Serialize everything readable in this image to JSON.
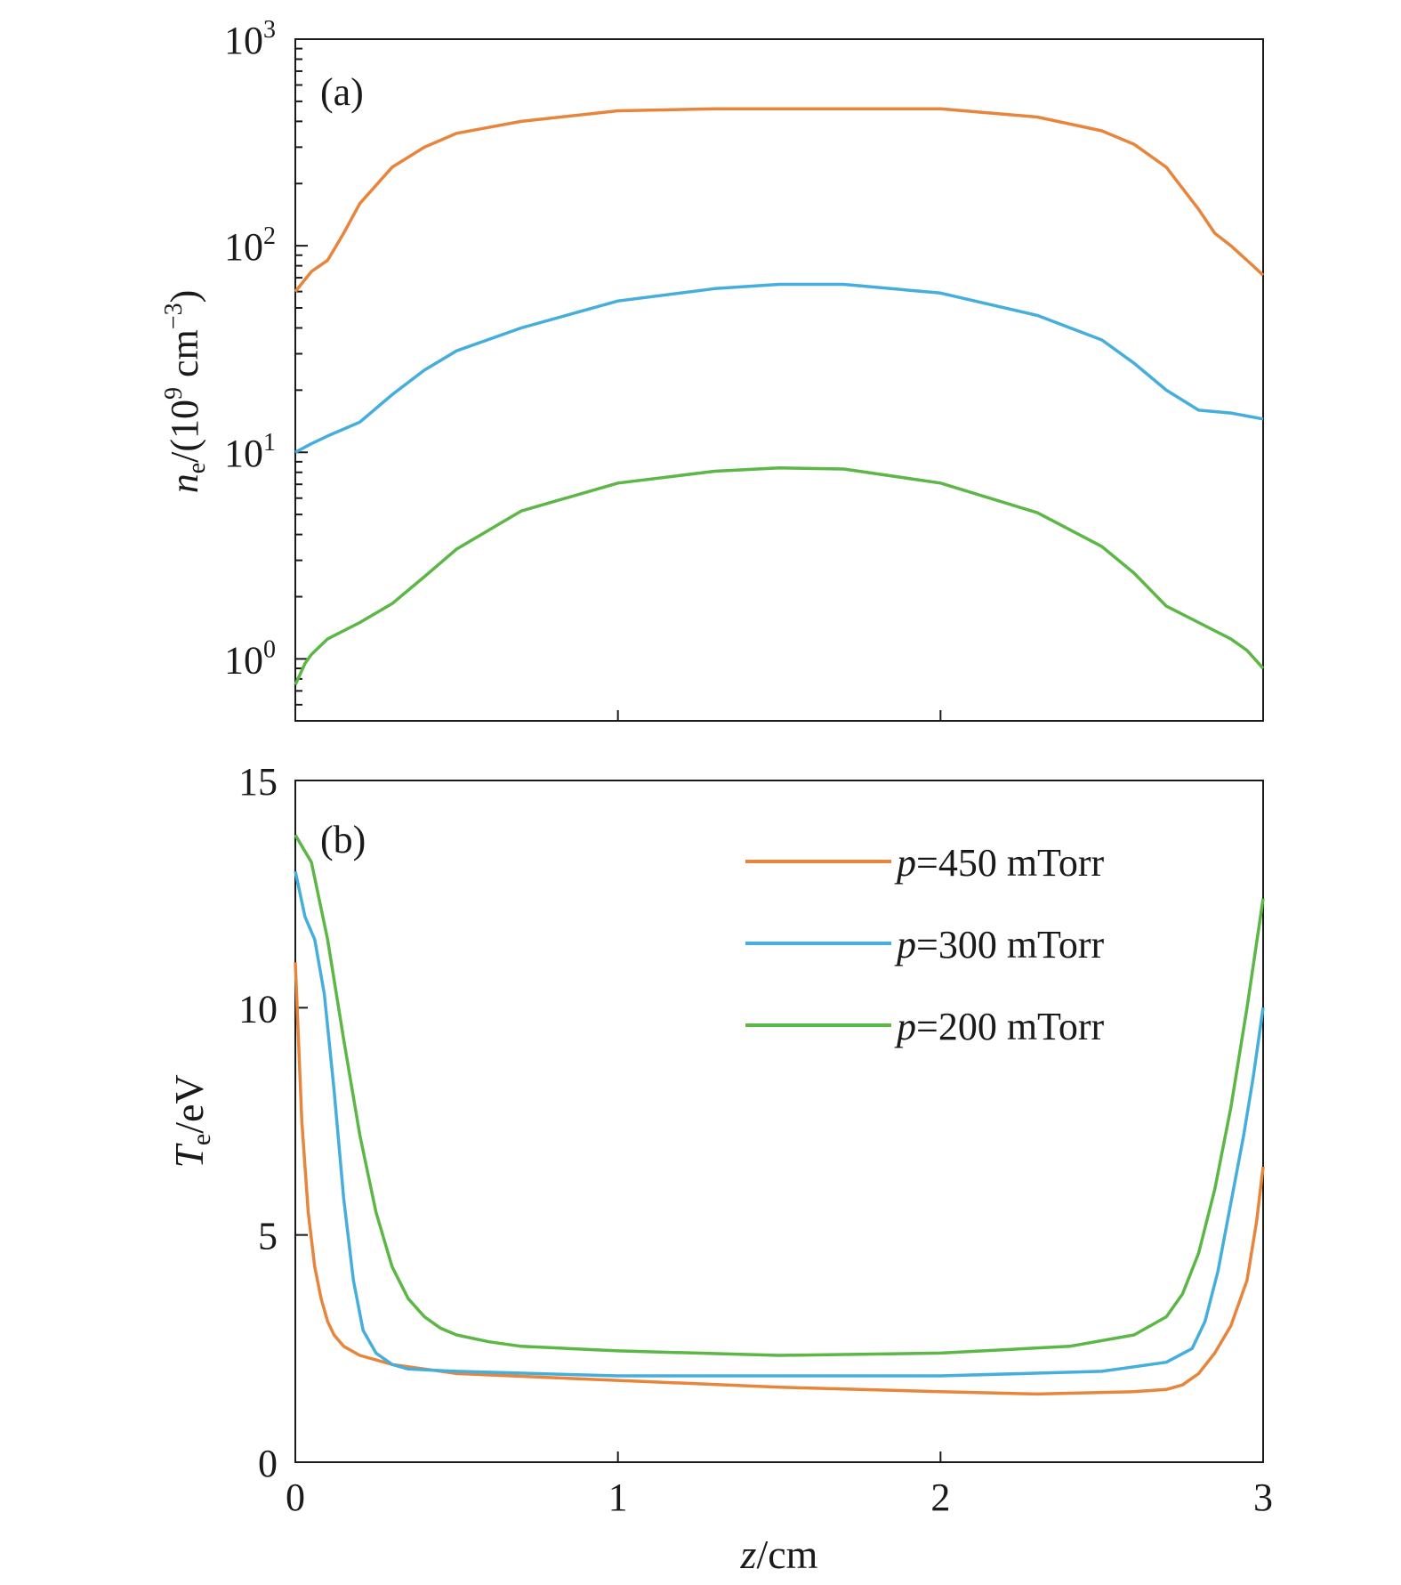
{
  "chart_data": [
    {
      "panel": "(a)",
      "type": "line",
      "yscale": "log",
      "xlim": [
        0,
        3
      ],
      "ylim_log10": [
        -0.3,
        3
      ],
      "ylabel_main": "n",
      "ylabel_sub": "e",
      "ylabel_rest": "/(10",
      "ylabel_exp": "9",
      "ylabel_unit": " cm",
      "ylabel_unit_exp": "−3",
      "ylabel_close": ")",
      "yticks": [
        {
          "base": "10",
          "exp": "0",
          "value": 1
        },
        {
          "base": "10",
          "exp": "1",
          "value": 10
        },
        {
          "base": "10",
          "exp": "2",
          "value": 100
        },
        {
          "base": "10",
          "exp": "3",
          "value": 1000
        }
      ],
      "series": [
        {
          "color": "#e8853d",
          "x": [
            0,
            0.05,
            0.1,
            0.15,
            0.2,
            0.3,
            0.4,
            0.5,
            0.7,
            1.0,
            1.3,
            1.5,
            1.7,
            2.0,
            2.3,
            2.5,
            2.6,
            2.7,
            2.8,
            2.85,
            2.9,
            2.95,
            3.0
          ],
          "y": [
            60,
            75,
            85,
            115,
            160,
            240,
            300,
            350,
            400,
            450,
            460,
            460,
            460,
            460,
            420,
            360,
            310,
            240,
            150,
            115,
            100,
            85,
            72
          ]
        },
        {
          "color": "#45aedc",
          "x": [
            0,
            0.05,
            0.1,
            0.2,
            0.3,
            0.4,
            0.5,
            0.7,
            1.0,
            1.3,
            1.5,
            1.7,
            2.0,
            2.3,
            2.5,
            2.6,
            2.7,
            2.8,
            2.9,
            3.0
          ],
          "y": [
            10,
            11,
            12,
            14,
            19,
            25,
            31,
            40,
            54,
            62,
            65,
            65,
            59,
            46,
            35,
            27,
            20,
            16,
            15.5,
            14.5
          ]
        },
        {
          "color": "#5cb746",
          "x": [
            0,
            0.03,
            0.05,
            0.1,
            0.2,
            0.3,
            0.4,
            0.5,
            0.7,
            1.0,
            1.3,
            1.5,
            1.7,
            2.0,
            2.3,
            2.5,
            2.6,
            2.7,
            2.8,
            2.9,
            2.95,
            3.0
          ],
          "y": [
            0.75,
            0.95,
            1.05,
            1.25,
            1.5,
            1.85,
            2.5,
            3.4,
            5.2,
            7.1,
            8.1,
            8.4,
            8.3,
            7.1,
            5.1,
            3.5,
            2.6,
            1.8,
            1.5,
            1.25,
            1.1,
            0.9
          ]
        }
      ]
    },
    {
      "panel": "(b)",
      "type": "line",
      "xlim": [
        0,
        3
      ],
      "ylim": [
        0,
        15
      ],
      "xlabel_main": "z",
      "xlabel_rest": "/cm",
      "ylabel_main": "T",
      "ylabel_sub": "e",
      "ylabel_rest": "/eV",
      "xticks": [
        "0",
        "1",
        "2",
        "3"
      ],
      "yticks": [
        "0",
        "5",
        "10",
        "15"
      ],
      "legend": {
        "position": "top-right",
        "entries": [
          {
            "p": "p",
            "text": "=450 mTorr",
            "color": "#e8853d"
          },
          {
            "p": "p",
            "text": "=300 mTorr",
            "color": "#45aedc"
          },
          {
            "p": "p",
            "text": "=200 mTorr",
            "color": "#5cb746"
          }
        ]
      },
      "series": [
        {
          "color": "#e8853d",
          "x": [
            0,
            0.02,
            0.04,
            0.06,
            0.08,
            0.1,
            0.12,
            0.15,
            0.2,
            0.3,
            0.5,
            1.0,
            1.5,
            2.0,
            2.3,
            2.6,
            2.7,
            2.75,
            2.8,
            2.85,
            2.9,
            2.95,
            2.98,
            3.0
          ],
          "y": [
            11,
            7.5,
            5.5,
            4.3,
            3.6,
            3.1,
            2.8,
            2.55,
            2.35,
            2.15,
            1.95,
            1.8,
            1.65,
            1.55,
            1.5,
            1.55,
            1.6,
            1.7,
            1.95,
            2.4,
            3,
            4,
            5.3,
            6.5
          ]
        },
        {
          "color": "#45aedc",
          "x": [
            0,
            0.03,
            0.06,
            0.09,
            0.12,
            0.15,
            0.18,
            0.21,
            0.25,
            0.3,
            0.35,
            0.5,
            1.0,
            1.5,
            2.0,
            2.5,
            2.7,
            2.78,
            2.82,
            2.86,
            2.9,
            2.94,
            2.97,
            3.0
          ],
          "y": [
            13,
            12,
            11.5,
            10.3,
            8.2,
            5.8,
            4,
            2.9,
            2.4,
            2.15,
            2.05,
            2.0,
            1.9,
            1.9,
            1.9,
            2.0,
            2.2,
            2.5,
            3.1,
            4.2,
            5.7,
            7.2,
            8.5,
            10
          ]
        },
        {
          "color": "#5cb746",
          "x": [
            0,
            0.05,
            0.1,
            0.15,
            0.2,
            0.25,
            0.3,
            0.35,
            0.4,
            0.45,
            0.5,
            0.6,
            0.7,
            1.0,
            1.5,
            2.0,
            2.4,
            2.6,
            2.7,
            2.75,
            2.8,
            2.85,
            2.9,
            2.95,
            3.0
          ],
          "y": [
            13.8,
            13.2,
            11.5,
            9.3,
            7.2,
            5.5,
            4.3,
            3.6,
            3.2,
            2.95,
            2.8,
            2.65,
            2.55,
            2.45,
            2.35,
            2.4,
            2.55,
            2.8,
            3.2,
            3.7,
            4.6,
            6,
            7.8,
            10,
            12.4
          ]
        }
      ]
    }
  ],
  "panel_labels": {
    "a": "(a)",
    "b": "(b)"
  }
}
